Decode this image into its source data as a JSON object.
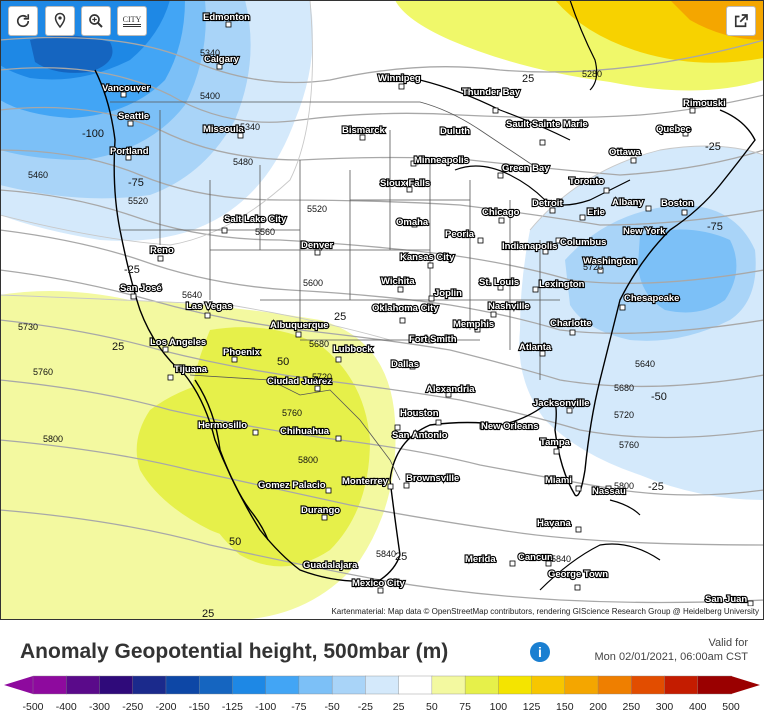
{
  "controls": {
    "refresh_icon": "refresh-icon",
    "pin_icon": "map-pin-icon",
    "zoom_icon": "zoom-icon",
    "city_toggle_label": "CITY",
    "share_icon": "share-icon"
  },
  "map": {
    "attribution": "Kartenmaterial: Map data © OpenStreetMap contributors, rendering GIScience Research Group @ Heidelberg University",
    "cities": [
      "Edmonton",
      "Calgary",
      "Vancouver",
      "Seattle",
      "Missoula",
      "Portland",
      "Winnipeg",
      "Thunder Bay",
      "Bismarck",
      "Duluth",
      "Sault Sainte Marie",
      "Rimouski",
      "Quebec",
      "Ottawa",
      "Minneapolis",
      "Green Bay",
      "Sioux Falls",
      "Toronto",
      "Detroit",
      "Erie",
      "Albany",
      "Boston",
      "Salt Lake City",
      "Omaha",
      "Chicago",
      "Peoria",
      "Indianapolis",
      "Columbus",
      "New York",
      "Reno",
      "Denver",
      "Kansas City",
      "Washington",
      "San José",
      "Wichita",
      "St. Louis",
      "Joplin",
      "Lexington",
      "Las Vegas",
      "Oklahoma City",
      "Nashville",
      "Chesapeake",
      "Albuquerque",
      "Memphis",
      "Charlotte",
      "Los Angeles",
      "Phoenix",
      "Lubbock",
      "Fort Smith",
      "Atlanta",
      "Tijuana",
      "Dallas",
      "Ciudad Juárez",
      "Alexandria",
      "Jacksonville",
      "Houston",
      "Hermosillo",
      "Chihuahua",
      "New Orleans",
      "San Antonio",
      "Tampa",
      "Brownsville",
      "Miami",
      "Nassau",
      "Gomez Palacio",
      "Monterrey",
      "Durango",
      "Havana",
      "Merida",
      "Cancun",
      "Guadalajara",
      "George Town",
      "Mexico City",
      "San Juan"
    ],
    "contour_labels": [
      "5340",
      "5400",
      "5340",
      "5480",
      "5460",
      "5520",
      "5520",
      "5560",
      "5600",
      "5640",
      "5680",
      "5720",
      "5730",
      "5760",
      "5760",
      "5800",
      "5800",
      "5280",
      "5840",
      "5720",
      "5760",
      "5640",
      "5680",
      "5720",
      "5800",
      "5840"
    ],
    "anomaly_labels": [
      "-100",
      "-75",
      "-25",
      "25",
      "25",
      "50",
      "50",
      "25",
      "-25",
      "-75",
      "-50",
      "-25",
      "25",
      "25"
    ]
  },
  "title": "Anomaly Geopotential height, 500mbar (m)",
  "info_icon": "info-icon",
  "valid": {
    "label": "Valid for",
    "time": "Mon 02/01/2021, 06:00am CST"
  },
  "legend": {
    "ticks": [
      "-500",
      "-400",
      "-300",
      "-250",
      "-200",
      "-150",
      "-125",
      "-100",
      "-75",
      "-50",
      "-25",
      "25",
      "50",
      "75",
      "100",
      "125",
      "150",
      "200",
      "250",
      "300",
      "400",
      "500"
    ],
    "colors": [
      "#8e0a9e",
      "#5a0a8a",
      "#2f0a7a",
      "#1b2a8c",
      "#0d47a6",
      "#1565c0",
      "#1e88e5",
      "#42a5f5",
      "#7cc0f7",
      "#a9d4f8",
      "#d4e9fb",
      "#ffffff",
      "#f3f9a0",
      "#e6f04a",
      "#f4e400",
      "#f7c600",
      "#f4a600",
      "#ef7f00",
      "#e24d00",
      "#c41c00",
      "#9a0000"
    ]
  }
}
